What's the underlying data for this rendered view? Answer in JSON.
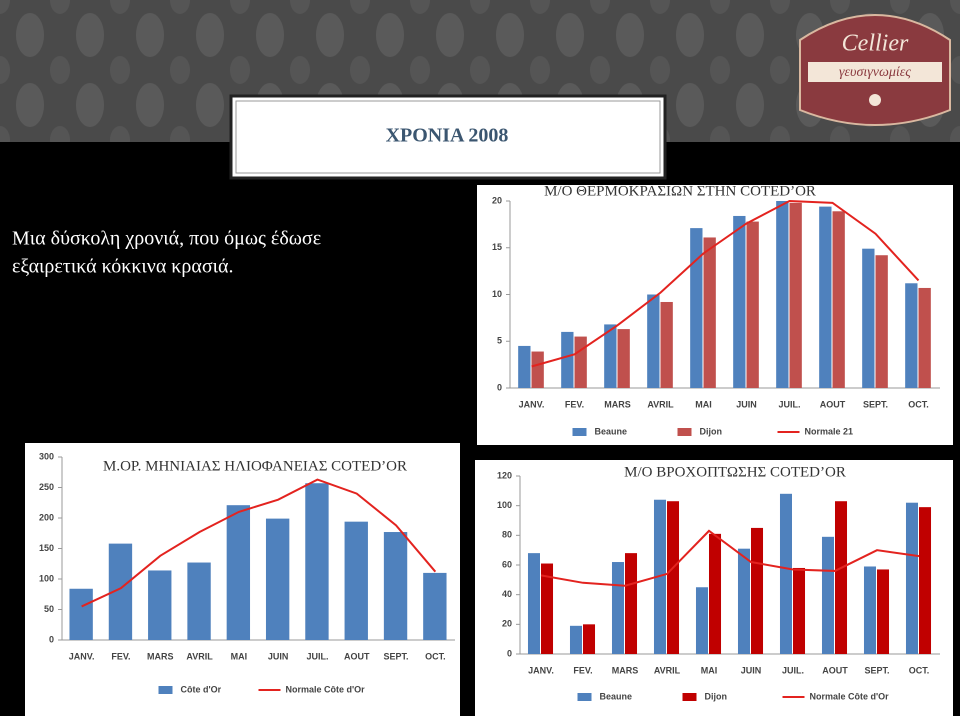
{
  "slide": {
    "title": "ΧΡΟΝΙΑ 2008",
    "text_lines": [
      "Μια δύσκολη χρονιά, που όμως έδωσε",
      "εξαιρετικά κόκκινα κρασιά."
    ],
    "logo": {
      "name": "Cellier",
      "tagline": "γευσιγνωμίες"
    }
  },
  "chart_data": [
    {
      "type": "bar",
      "title": "Μ/Ο ΘΕΡΜΟΚΡΑΣΙΩΝ ΣΤΗΝ COTED’OR",
      "categories": [
        "JANV.",
        "FEV.",
        "MARS",
        "AVRIL",
        "MAI",
        "JUIN",
        "JUIL.",
        "AOUT",
        "SEPT.",
        "OCT."
      ],
      "series": [
        {
          "name": "Beaune",
          "type": "bar",
          "color": "#4f81bd",
          "values": [
            4.5,
            6.0,
            6.8,
            10.0,
            17.1,
            18.4,
            20.0,
            19.4,
            14.9,
            11.2
          ]
        },
        {
          "name": "Dijon",
          "type": "bar",
          "color": "#c0504d",
          "values": [
            3.9,
            5.5,
            6.3,
            9.2,
            16.1,
            17.8,
            19.8,
            18.9,
            14.2,
            10.7
          ]
        },
        {
          "name": "Normale 21",
          "type": "line",
          "color": "#e3231f",
          "values": [
            2.3,
            3.6,
            6.7,
            10.2,
            14.4,
            17.6,
            20.0,
            19.8,
            16.5,
            11.5
          ]
        }
      ],
      "ylim": [
        0,
        20
      ],
      "yticks": [
        0,
        5,
        10,
        15,
        20
      ],
      "grid": false,
      "legend": "bottom"
    },
    {
      "type": "bar",
      "title": "Μ.ΟΡ. ΜΗΝΙΑΙΑΣ ΗΛΙΟΦΑΝΕΙΑΣ COTED’OR",
      "categories": [
        "JANV.",
        "FEV.",
        "MARS",
        "AVRIL",
        "MAI",
        "JUIN",
        "JUIL.",
        "AOUT",
        "SEPT.",
        "OCT."
      ],
      "series": [
        {
          "name": "Côte d'Or",
          "type": "bar",
          "color": "#4f81bd",
          "values": [
            84,
            158,
            114,
            127,
            221,
            199,
            257,
            194,
            177,
            110
          ]
        },
        {
          "name": "Normale Côte d'Or",
          "type": "line",
          "color": "#e3231f",
          "values": [
            55,
            85,
            138,
            177,
            210,
            230,
            263,
            240,
            188,
            112
          ]
        }
      ],
      "ylim": [
        0,
        300
      ],
      "yticks": [
        0,
        50,
        100,
        150,
        200,
        250,
        300
      ],
      "grid": false,
      "legend": "bottom"
    },
    {
      "type": "bar",
      "title": "Μ/Ο ΒΡΟΧΟΠΤΩΣΗΣ COTED’OR",
      "categories": [
        "JANV.",
        "FEV.",
        "MARS",
        "AVRIL",
        "MAI",
        "JUIN",
        "JUIL.",
        "AOUT",
        "SEPT.",
        "OCT."
      ],
      "series": [
        {
          "name": "Beaune",
          "type": "bar",
          "color": "#4f81bd",
          "values": [
            68,
            19,
            62,
            104,
            45,
            71,
            108,
            79,
            59,
            102
          ]
        },
        {
          "name": "Dijon",
          "type": "bar",
          "color": "#c00000",
          "values": [
            61,
            20,
            68,
            103,
            81,
            85,
            58,
            103,
            57,
            99
          ]
        },
        {
          "name": "Normale Côte d'Or",
          "type": "line",
          "color": "#e3231f",
          "values": [
            53,
            48,
            46,
            54,
            83,
            62,
            57,
            56,
            70,
            66
          ]
        }
      ],
      "ylim": [
        0,
        120
      ],
      "yticks": [
        0,
        20,
        40,
        60,
        80,
        100,
        120
      ],
      "grid": false,
      "legend": "bottom"
    }
  ]
}
